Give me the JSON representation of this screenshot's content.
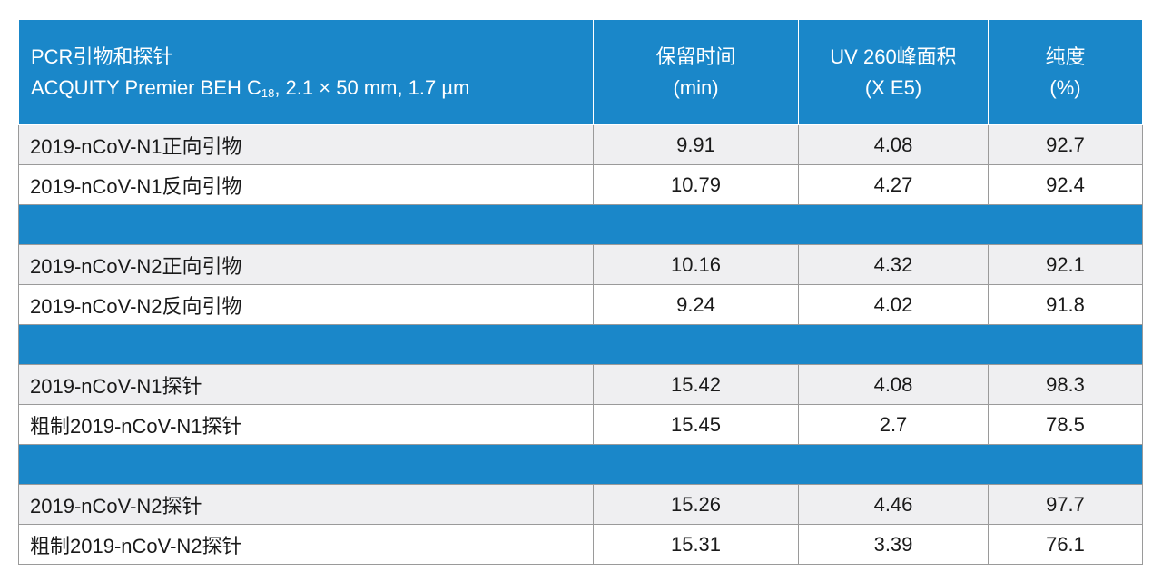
{
  "header": {
    "col0_line1": "PCR引物和探针",
    "col0_line2_pre": "ACQUITY Premier BEH C",
    "col0_line2_sub": "18",
    "col0_line2_post": ", 2.1 × 50 mm, 1.7 µm",
    "col1_line1": "保留时间",
    "col1_line2": "(min)",
    "col2_line1": "UV 260峰面积",
    "col2_line2": "(X E5)",
    "col3_line1": "纯度",
    "col3_line2": "(%)"
  },
  "rows": [
    {
      "name": "2019-nCoV-N1正向引物",
      "rt": "9.91",
      "area": "4.08",
      "purity": "92.7"
    },
    {
      "name": "2019-nCoV-N1反向引物",
      "rt": "10.79",
      "area": "4.27",
      "purity": "92.4"
    },
    {
      "name": "2019-nCoV-N2正向引物",
      "rt": "10.16",
      "area": "4.32",
      "purity": "92.1"
    },
    {
      "name": "2019-nCoV-N2反向引物",
      "rt": "9.24",
      "area": "4.02",
      "purity": "91.8"
    },
    {
      "name": "2019-nCoV-N1探针",
      "rt": "15.42",
      "area": "4.08",
      "purity": "98.3"
    },
    {
      "name": "粗制2019-nCoV-N1探针",
      "rt": "15.45",
      "area": "2.7",
      "purity": "78.5"
    },
    {
      "name": "2019-nCoV-N2探针",
      "rt": "15.26",
      "area": "4.46",
      "purity": "97.7"
    },
    {
      "name": "粗制2019-nCoV-N2探针",
      "rt": "15.31",
      "area": "3.39",
      "purity": "76.1"
    }
  ],
  "colors": {
    "header_bg": "#1a87c9",
    "separator_bg": "#1a87c9",
    "alt_row_bg": "#efeff1"
  }
}
